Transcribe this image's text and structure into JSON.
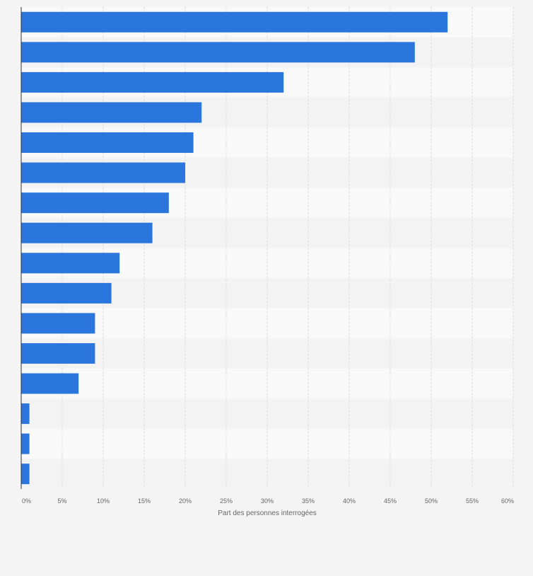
{
  "chart_data": {
    "type": "bar",
    "orientation": "horizontal",
    "xlabel": "Part des personnes interrogées",
    "ylabel": "",
    "xlim": [
      0,
      60
    ],
    "x_ticks": [
      "0%",
      "5%",
      "10%",
      "15%",
      "20%",
      "25%",
      "30%",
      "35%",
      "40%",
      "45%",
      "50%",
      "55%",
      "60%"
    ],
    "categories": [
      "",
      "",
      "",
      "",
      "",
      "",
      "",
      "",
      "",
      "",
      "",
      "",
      "",
      "",
      "",
      ""
    ],
    "values": [
      52,
      48,
      32,
      22,
      21,
      20,
      18,
      16,
      12,
      11,
      9,
      9,
      7,
      1,
      1,
      1
    ],
    "unit": "%",
    "grid": true,
    "colors": {
      "bar": "#2a76dd",
      "band_light": "#f9f9f9",
      "band_dark": "#f3f3f3",
      "gridline": "#dcdcdc",
      "axis": "#333333",
      "tick_text": "#666666"
    }
  }
}
